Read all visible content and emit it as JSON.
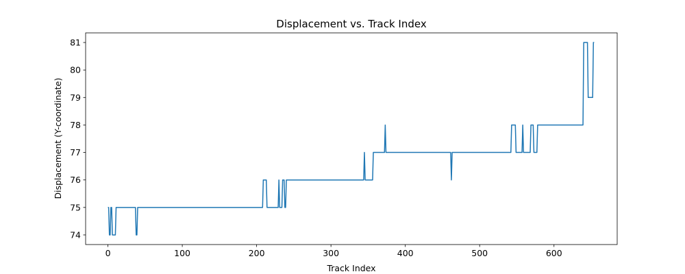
{
  "chart_data": {
    "type": "line",
    "title": "Displacement vs. Track Index",
    "xlabel": "Track Index",
    "ylabel": "Displacement (Y-coordinate)",
    "xlim": [
      -30,
      685
    ],
    "ylim": [
      73.65,
      81.35
    ],
    "xticks": [
      0,
      100,
      200,
      300,
      400,
      500,
      600
    ],
    "yticks": [
      74,
      75,
      76,
      77,
      78,
      79,
      80,
      81
    ],
    "grid": false,
    "series": [
      {
        "name": "displacement",
        "color": "#1f77b4",
        "points": [
          [
            0,
            75
          ],
          [
            1,
            75
          ],
          [
            2,
            74
          ],
          [
            3,
            74
          ],
          [
            4,
            75
          ],
          [
            5,
            75
          ],
          [
            6,
            74
          ],
          [
            10,
            74
          ],
          [
            11,
            75
          ],
          [
            37,
            75
          ],
          [
            38,
            74
          ],
          [
            39,
            74
          ],
          [
            40,
            75
          ],
          [
            208,
            75
          ],
          [
            209,
            76
          ],
          [
            213,
            76
          ],
          [
            214,
            75
          ],
          [
            229,
            75
          ],
          [
            230,
            76
          ],
          [
            231,
            75
          ],
          [
            234,
            75
          ],
          [
            235,
            76
          ],
          [
            237,
            76
          ],
          [
            238,
            75
          ],
          [
            239,
            75
          ],
          [
            240,
            76
          ],
          [
            344,
            76
          ],
          [
            345,
            77
          ],
          [
            346,
            76
          ],
          [
            356,
            76
          ],
          [
            357,
            77
          ],
          [
            372,
            77
          ],
          [
            373,
            78
          ],
          [
            374,
            77
          ],
          [
            461,
            77
          ],
          [
            462,
            76
          ],
          [
            463,
            77
          ],
          [
            542,
            77
          ],
          [
            543,
            78
          ],
          [
            548,
            78
          ],
          [
            549,
            77
          ],
          [
            557,
            77
          ],
          [
            558,
            78
          ],
          [
            559,
            77
          ],
          [
            568,
            77
          ],
          [
            569,
            78
          ],
          [
            572,
            78
          ],
          [
            573,
            77
          ],
          [
            577,
            77
          ],
          [
            578,
            78
          ],
          [
            639,
            78
          ],
          [
            640,
            81
          ],
          [
            645,
            81
          ],
          [
            646,
            79
          ],
          [
            652,
            79
          ],
          [
            653,
            81
          ],
          [
            654,
            81
          ]
        ]
      }
    ]
  }
}
